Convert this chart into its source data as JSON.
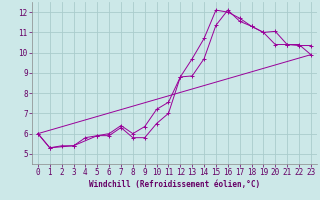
{
  "background_color": "#cce8e8",
  "grid_color": "#aacccc",
  "line_color": "#990099",
  "xlim": [
    -0.5,
    23.5
  ],
  "ylim": [
    4.5,
    12.5
  ],
  "xlabel": "Windchill (Refroidissement éolien,°C)",
  "xlabel_fontsize": 5.5,
  "ytick_labels": [
    "5",
    "6",
    "7",
    "8",
    "9",
    "10",
    "11",
    "12"
  ],
  "ytick_vals": [
    5,
    6,
    7,
    8,
    9,
    10,
    11,
    12
  ],
  "xtick_vals": [
    0,
    1,
    2,
    3,
    4,
    5,
    6,
    7,
    8,
    9,
    10,
    11,
    12,
    13,
    14,
    15,
    16,
    17,
    18,
    19,
    20,
    21,
    22,
    23
  ],
  "series1_x": [
    0,
    1,
    2,
    3,
    4,
    5,
    6,
    7,
    8,
    9,
    10,
    11,
    12,
    13,
    14,
    15,
    16,
    17,
    18,
    19,
    20,
    21,
    22,
    23
  ],
  "series1_y": [
    6.0,
    5.3,
    5.4,
    5.4,
    5.8,
    5.9,
    5.9,
    6.3,
    5.8,
    5.8,
    6.5,
    7.0,
    8.8,
    9.7,
    10.7,
    12.1,
    12.0,
    11.7,
    11.3,
    11.0,
    10.4,
    10.4,
    10.4,
    9.9
  ],
  "series2_x": [
    0,
    1,
    3,
    5,
    6,
    7,
    8,
    9,
    10,
    11,
    12,
    13,
    14,
    15,
    16,
    17,
    18,
    19,
    20,
    21,
    22,
    23
  ],
  "series2_y": [
    6.0,
    5.3,
    5.4,
    5.9,
    6.0,
    6.4,
    6.0,
    6.35,
    7.2,
    7.55,
    8.8,
    8.85,
    9.7,
    11.35,
    12.1,
    11.55,
    11.3,
    11.0,
    11.05,
    10.4,
    10.35,
    10.35
  ],
  "series3_x": [
    0,
    23
  ],
  "series3_y": [
    6.0,
    9.9
  ],
  "tick_fontsize": 5.5,
  "linewidth": 0.7,
  "markersize": 2.5,
  "markeredgewidth": 0.7
}
